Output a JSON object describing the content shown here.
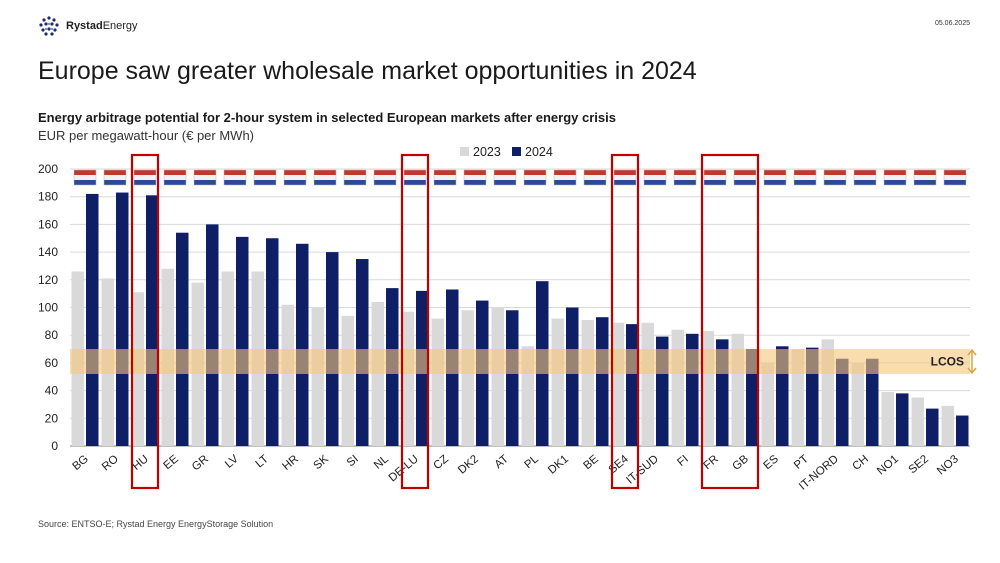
{
  "brand": {
    "name_bold": "Rystad",
    "name_rest": "Energy"
  },
  "date": "05.06.2025",
  "title": "Europe saw greater wholesale market opportunities in 2024",
  "subtitle": "Energy arbitrage potential for 2-hour system in selected European markets after energy crisis",
  "unit_label": "EUR per megawatt-hour (€ per MWh)",
  "source": "Source: ENTSO-E; Rystad Energy EnergyStorage Solution",
  "colors": {
    "s2023": "#d9d9d9",
    "s2024": "#0f1f66",
    "highlight": "#c00000",
    "lcos_band": "#f5c77a",
    "grid": "#d9d9d9"
  },
  "icons": [
    "rystad-logo-icon",
    "flag-icon",
    "double-arrow-icon"
  ],
  "chart_data": {
    "type": "bar",
    "title": "Energy arbitrage potential for 2-hour system in selected European markets after energy crisis",
    "ylabel": "EUR per megawatt-hour (€ per MWh)",
    "ylim": [
      0,
      200
    ],
    "yticks": [
      0,
      20,
      40,
      60,
      80,
      100,
      120,
      140,
      160,
      180,
      200
    ],
    "grid": true,
    "legend_position": "top-center",
    "categories": [
      "BG",
      "RO",
      "HU",
      "EE",
      "GR",
      "LV",
      "LT",
      "HR",
      "SK",
      "SI",
      "NL",
      "DE-LU",
      "CZ",
      "DK2",
      "AT",
      "PL",
      "DK1",
      "BE",
      "SE4",
      "IT-SUD",
      "FI",
      "FR",
      "GB",
      "ES",
      "PT",
      "IT-NORD",
      "CH",
      "NO1",
      "SE2",
      "NO3"
    ],
    "series": [
      {
        "name": "2023",
        "values": [
          126,
          121,
          111,
          128,
          118,
          126,
          126,
          102,
          100,
          94,
          104,
          97,
          92,
          98,
          100,
          72,
          92,
          91,
          89,
          89,
          84,
          83,
          81,
          60,
          70,
          77,
          60,
          39,
          35,
          29
        ]
      },
      {
        "name": "2024",
        "values": [
          182,
          183,
          181,
          154,
          160,
          151,
          150,
          146,
          140,
          135,
          114,
          112,
          113,
          105,
          98,
          119,
          100,
          93,
          88,
          79,
          81,
          77,
          70,
          72,
          71,
          63,
          63,
          38,
          27,
          22
        ]
      }
    ],
    "highlighted_categories": [
      "HU",
      "DE-LU",
      "SE4",
      "FR",
      "GB"
    ],
    "lcos": {
      "label": "LCOS",
      "range": [
        52,
        70
      ]
    }
  }
}
